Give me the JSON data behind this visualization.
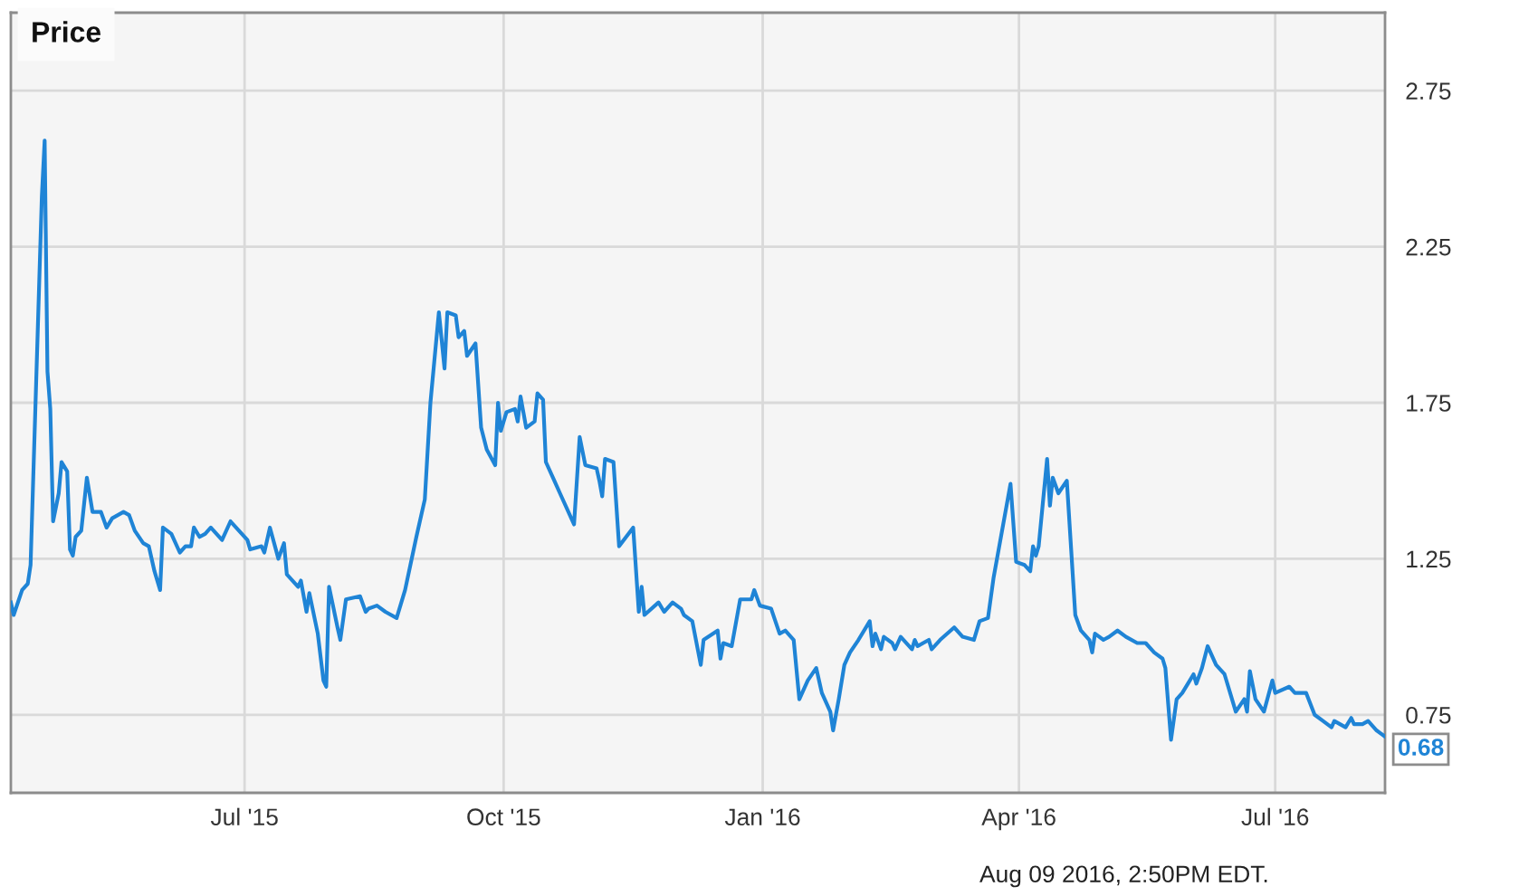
{
  "chart_data": {
    "type": "line",
    "title": "Price",
    "annotations": [
      {
        "text": "0.68",
        "x": "2016-08-09",
        "y": 0.68
      },
      "Aug 09 2016, 2:50PM EDT."
    ],
    "x": [
      "2015-04-09",
      "2015-04-10",
      "2015-04-13",
      "2015-04-15",
      "2015-04-16",
      "2015-04-20",
      "2015-04-21",
      "2015-04-22",
      "2015-04-23",
      "2015-04-24",
      "2015-04-26",
      "2015-04-27",
      "2015-04-29",
      "2015-04-30",
      "2015-05-01",
      "2015-05-02",
      "2015-05-04",
      "2015-05-06",
      "2015-05-08",
      "2015-05-11",
      "2015-05-13",
      "2015-05-15",
      "2015-05-19",
      "2015-05-21",
      "2015-05-23",
      "2015-05-26",
      "2015-05-28",
      "2015-05-30",
      "2015-06-01",
      "2015-06-02",
      "2015-06-05",
      "2015-06-08",
      "2015-06-10",
      "2015-06-12",
      "2015-06-13",
      "2015-06-15",
      "2015-06-17",
      "2015-06-19",
      "2015-06-23",
      "2015-06-26",
      "2015-07-02",
      "2015-07-03",
      "2015-07-07",
      "2015-07-08",
      "2015-07-10",
      "2015-07-13",
      "2015-07-15",
      "2015-07-16",
      "2015-07-20",
      "2015-07-21",
      "2015-07-23",
      "2015-07-24",
      "2015-07-27",
      "2015-07-29",
      "2015-07-30",
      "2015-07-31",
      "2015-08-03",
      "2015-08-04",
      "2015-08-06",
      "2015-08-11",
      "2015-08-13",
      "2015-08-14",
      "2015-08-17",
      "2015-08-20",
      "2015-08-24",
      "2015-08-27",
      "2015-08-31",
      "2015-09-03",
      "2015-09-05",
      "2015-09-08",
      "2015-09-10",
      "2015-09-11",
      "2015-09-14",
      "2015-09-15",
      "2015-09-17",
      "2015-09-18",
      "2015-09-21",
      "2015-09-23",
      "2015-09-25",
      "2015-09-28",
      "2015-09-29",
      "2015-09-30",
      "2015-10-02",
      "2015-10-05",
      "2015-10-06",
      "2015-10-07",
      "2015-10-09",
      "2015-10-12",
      "2015-10-13",
      "2015-10-15",
      "2015-10-16",
      "2015-10-19",
      "2015-10-21",
      "2015-10-26",
      "2015-10-28",
      "2015-10-30",
      "2015-11-03",
      "2015-11-04",
      "2015-11-05",
      "2015-11-06",
      "2015-11-09",
      "2015-11-11",
      "2015-11-16",
      "2015-11-18",
      "2015-11-19",
      "2015-11-20",
      "2015-11-25",
      "2015-11-27",
      "2015-11-30",
      "2015-12-03",
      "2015-12-04",
      "2015-12-07",
      "2015-12-10",
      "2015-12-11",
      "2015-12-16",
      "2015-12-17",
      "2015-12-18",
      "2015-12-21",
      "2015-12-23",
      "2015-12-24",
      "2015-12-28",
      "2015-12-29",
      "2015-12-31",
      "2016-01-04",
      "2016-01-07",
      "2016-01-09",
      "2016-01-12",
      "2016-01-14",
      "2016-01-17",
      "2016-01-20",
      "2016-01-22",
      "2016-01-25",
      "2016-01-26",
      "2016-01-28",
      "2016-01-30",
      "2016-02-01",
      "2016-02-04",
      "2016-02-08",
      "2016-02-09",
      "2016-02-10",
      "2016-02-12",
      "2016-02-13",
      "2016-02-16",
      "2016-02-17",
      "2016-02-19",
      "2016-02-23",
      "2016-02-24",
      "2016-02-25",
      "2016-02-29",
      "2016-03-01",
      "2016-03-04",
      "2016-03-09",
      "2016-03-12",
      "2016-03-16",
      "2016-03-18",
      "2016-03-21",
      "2016-03-23",
      "2016-03-29",
      "2016-03-31",
      "2016-04-03",
      "2016-04-05",
      "2016-04-06",
      "2016-04-07",
      "2016-04-08",
      "2016-04-11",
      "2016-04-12",
      "2016-04-13",
      "2016-04-15",
      "2016-04-18",
      "2016-04-21",
      "2016-04-23",
      "2016-04-26",
      "2016-04-27",
      "2016-04-28",
      "2016-05-01",
      "2016-05-03",
      "2016-05-06",
      "2016-05-09",
      "2016-05-13",
      "2016-05-16",
      "2016-05-19",
      "2016-05-22",
      "2016-05-23",
      "2016-05-25",
      "2016-05-27",
      "2016-05-29",
      "2016-05-31",
      "2016-06-02",
      "2016-06-03",
      "2016-06-05",
      "2016-06-07",
      "2016-06-10",
      "2016-06-13",
      "2016-06-17",
      "2016-06-20",
      "2016-06-21",
      "2016-06-22",
      "2016-06-24",
      "2016-06-27",
      "2016-06-30",
      "2016-07-01",
      "2016-07-06",
      "2016-07-08",
      "2016-07-12",
      "2016-07-15",
      "2016-07-18",
      "2016-07-21",
      "2016-07-22",
      "2016-07-26",
      "2016-07-28",
      "2016-07-29",
      "2016-08-01",
      "2016-08-03",
      "2016-08-06",
      "2016-08-09"
    ],
    "series": [
      {
        "color": "#1f84d6",
        "values": [
          1.11,
          1.07,
          1.15,
          1.17,
          1.23,
          2.41,
          2.59,
          1.85,
          1.73,
          1.37,
          1.46,
          1.56,
          1.53,
          1.28,
          1.26,
          1.32,
          1.34,
          1.51,
          1.4,
          1.4,
          1.35,
          1.38,
          1.4,
          1.39,
          1.34,
          1.3,
          1.29,
          1.21,
          1.15,
          1.35,
          1.33,
          1.27,
          1.29,
          1.29,
          1.35,
          1.32,
          1.33,
          1.35,
          1.31,
          1.37,
          1.31,
          1.28,
          1.29,
          1.27,
          1.35,
          1.25,
          1.3,
          1.2,
          1.16,
          1.18,
          1.08,
          1.14,
          1.01,
          0.86,
          0.84,
          1.16,
          1.03,
          0.99,
          1.12,
          1.13,
          1.08,
          1.09,
          1.1,
          1.08,
          1.06,
          1.15,
          1.32,
          1.44,
          1.75,
          2.04,
          1.86,
          2.04,
          2.03,
          1.96,
          1.98,
          1.9,
          1.94,
          1.67,
          1.6,
          1.55,
          1.75,
          1.66,
          1.72,
          1.73,
          1.69,
          1.77,
          1.67,
          1.69,
          1.78,
          1.76,
          1.56,
          1.5,
          1.46,
          1.36,
          1.64,
          1.55,
          1.54,
          1.5,
          1.45,
          1.57,
          1.56,
          1.29,
          1.35,
          1.08,
          1.16,
          1.07,
          1.11,
          1.08,
          1.11,
          1.09,
          1.07,
          1.05,
          0.91,
          0.99,
          1.02,
          0.93,
          0.98,
          0.97,
          1.07,
          1.12,
          1.12,
          1.15,
          1.1,
          1.09,
          1.01,
          1.02,
          0.99,
          0.8,
          0.86,
          0.9,
          0.82,
          0.76,
          0.7,
          0.8,
          0.91,
          0.95,
          0.99,
          1.05,
          0.97,
          1.01,
          0.96,
          1.0,
          0.98,
          0.96,
          1.0,
          0.96,
          0.99,
          0.97,
          0.99,
          0.96,
          0.99,
          1.03,
          1.0,
          0.99,
          1.05,
          1.06,
          1.19,
          1.49,
          1.24,
          1.23,
          1.21,
          1.29,
          1.26,
          1.29,
          1.57,
          1.42,
          1.51,
          1.46,
          1.5,
          1.07,
          1.02,
          0.99,
          0.95,
          1.01,
          0.99,
          1.0,
          1.02,
          1.0,
          0.98,
          0.98,
          0.95,
          0.93,
          0.9,
          0.67,
          0.8,
          0.82,
          0.85,
          0.88,
          0.85,
          0.9,
          0.97,
          0.91,
          0.88,
          0.76,
          0.8,
          0.76,
          0.89,
          0.8,
          0.76,
          0.86,
          0.82,
          0.84,
          0.82,
          0.82,
          0.75,
          0.73,
          0.71,
          0.73,
          0.71,
          0.74,
          0.72,
          0.72,
          0.73,
          0.7,
          0.68
        ]
      }
    ],
    "xlim": [
      "2015-04-09",
      "2016-08-09"
    ],
    "xticks": [
      {
        "value": "2015-07-01",
        "label": "Jul '15"
      },
      {
        "value": "2015-10-01",
        "label": "Oct '15"
      },
      {
        "value": "2016-01-01",
        "label": "Jan '16"
      },
      {
        "value": "2016-04-01",
        "label": "Apr '16"
      },
      {
        "value": "2016-07-01",
        "label": "Jul '16"
      }
    ],
    "ylim": [
      0.5,
      3.0
    ],
    "yticks": [
      0.75,
      1.25,
      1.75,
      2.25,
      2.75
    ],
    "grid": true
  }
}
